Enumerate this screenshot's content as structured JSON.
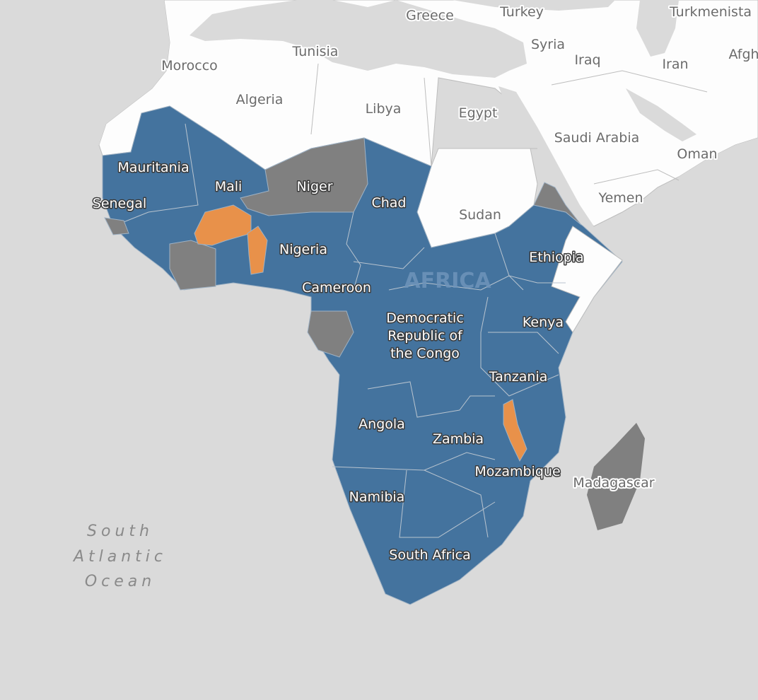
{
  "map": {
    "colors": {
      "water": "#dadada",
      "land_other": "#fdfdfd",
      "highlight_blue": "#44739e",
      "highlight_gray": "#808080",
      "highlight_orange": "#e8914a"
    },
    "region_label": "AFRICA",
    "ocean_label": [
      "South",
      "Atlantic",
      "Ocean"
    ],
    "context_labels": [
      "Greece",
      "Turkey",
      "Turkmenista",
      "Tunisia",
      "Syria",
      "Iraq",
      "Iran",
      "Afgh",
      "Morocco",
      "Algeria",
      "Libya",
      "Egypt",
      "Saudi Arabia",
      "Oman",
      "Yemen",
      "Sudan",
      "Madagascar"
    ],
    "country_labels": [
      "Mauritania",
      "Mali",
      "Niger",
      "Chad",
      "Senegal",
      "Nigeria",
      "Cameroon",
      "Ethiopia",
      "Kenya",
      "Democratic",
      "Republic of",
      "the Congo",
      "Tanzania",
      "Angola",
      "Zambia",
      "Mozambique",
      "Namibia",
      "South Africa"
    ],
    "gray_countries_unlabeled": [
      "Côte d'Ivoire",
      "Gabon",
      "Eritrea",
      "Guinea-Bissau"
    ],
    "orange_countries_unlabeled": [
      "Burkina Faso",
      "Togo/Benin",
      "Malawi"
    ]
  }
}
